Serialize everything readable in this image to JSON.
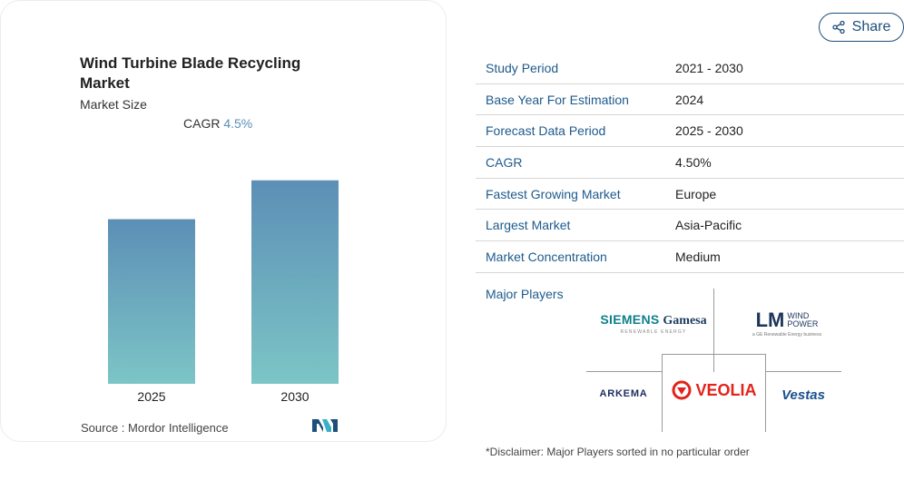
{
  "card": {
    "title": "Wind Turbine Blade Recycling Market",
    "subtitle": "Market Size",
    "cagr_label": "CAGR",
    "cagr_value": "4.5%",
    "source": "Source :  Mordor Intelligence"
  },
  "chart_data": {
    "type": "bar",
    "categories": [
      "2025",
      "2030"
    ],
    "values": [
      0.72,
      0.89
    ],
    "title": "",
    "xlabel": "",
    "ylabel": "",
    "ylim": [
      0,
      1
    ],
    "grid": false,
    "colors": [
      "#5c8fb6",
      "#7cc5c6"
    ]
  },
  "share": {
    "label": "Share"
  },
  "table": {
    "rows": [
      {
        "key": "Study Period",
        "value": "2021 - 2030"
      },
      {
        "key": "Base Year For Estimation",
        "value": "2024"
      },
      {
        "key": "Forecast Data Period",
        "value": "2025 - 2030"
      },
      {
        "key": "CAGR",
        "value": "4.50%"
      },
      {
        "key": "Fastest Growing Market",
        "value": "Europe"
      },
      {
        "key": "Largest Market",
        "value": "Asia-Pacific"
      },
      {
        "key": "Market Concentration",
        "value": "Medium"
      }
    ]
  },
  "players": {
    "label": "Major Players",
    "siemens": {
      "main": "SIEMENS",
      "second": "Gamesa",
      "tag": "RENEWABLE ENERGY"
    },
    "lm": {
      "main": "LM",
      "line1": "WIND",
      "line2": "POWER",
      "tag": "a GE Renewable Energy business"
    },
    "arkema": "ARKEMA",
    "veolia": "VEOLIA",
    "vestas": "Vestas"
  },
  "disclaimer": "*Disclaimer: Major Players sorted in no particular order"
}
